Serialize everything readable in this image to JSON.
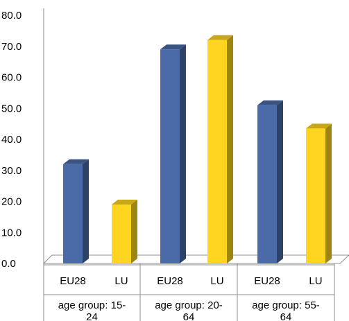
{
  "chart_data": {
    "type": "bar",
    "categories": [
      "EU28",
      "LU",
      "EU28",
      "LU",
      "EU28",
      "LU"
    ],
    "groups": [
      {
        "label_lines": [
          "age group: 15-",
          "24"
        ],
        "categories": [
          "EU28",
          "LU"
        ]
      },
      {
        "label_lines": [
          "age group: 20-",
          "64"
        ],
        "categories": [
          "EU28",
          "LU"
        ]
      },
      {
        "label_lines": [
          "age group: 55-",
          "64"
        ],
        "categories": [
          "EU28",
          "LU"
        ]
      }
    ],
    "values": [
      32.0,
      19.0,
      69.0,
      72.0,
      51.0,
      43.5
    ],
    "bar_colors": [
      "#4A6BA8",
      "#FFD51F",
      "#4A6BA8",
      "#FFD51F",
      "#4A6BA8",
      "#FFD51F"
    ],
    "ylim": [
      0,
      80
    ],
    "ytick_labels": [
      "0.0",
      "10.0",
      "20.0",
      "30.0",
      "40.0",
      "50.0",
      "60.0",
      "70.0",
      "80.0"
    ],
    "grid": false,
    "legend": "none",
    "style": "3d-columns"
  }
}
